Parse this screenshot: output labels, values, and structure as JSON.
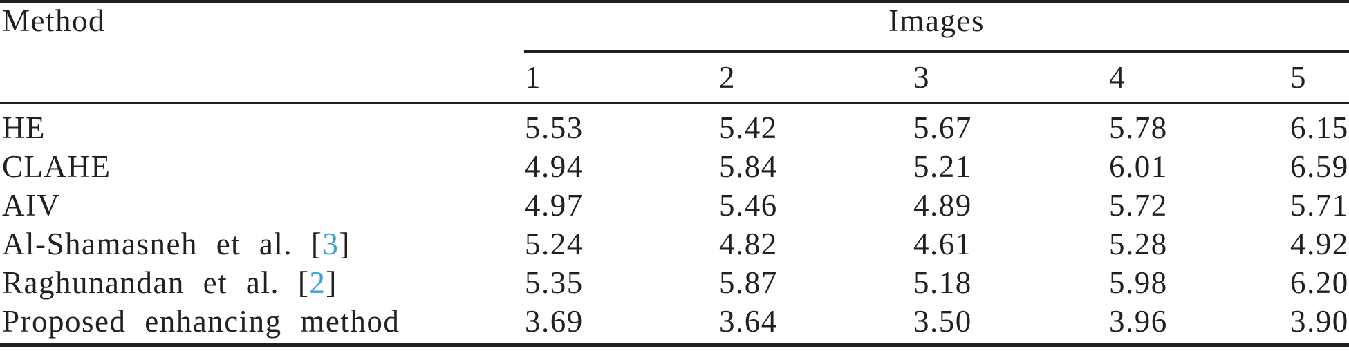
{
  "table": {
    "text_color": "#231f20",
    "citation_color": "#33a3dc",
    "header": {
      "method_label": "Method",
      "images_label": "Images"
    },
    "image_columns": [
      "1",
      "2",
      "3",
      "4",
      "5"
    ],
    "rows": [
      {
        "label": "HE",
        "values": [
          "5.53",
          "5.42",
          "5.67",
          "5.78",
          "6.15"
        ]
      },
      {
        "label": "CLAHE",
        "values": [
          "4.94",
          "5.84",
          "5.21",
          "6.01",
          "6.59"
        ]
      },
      {
        "label": "AIV",
        "values": [
          "4.97",
          "5.46",
          "4.89",
          "5.72",
          "5.71"
        ]
      },
      {
        "label": "Al-Shamasneh et al. ",
        "bracket_open": "[",
        "citation": "3",
        "bracket_close": "]",
        "values": [
          "5.24",
          "4.82",
          "4.61",
          "5.28",
          "4.92"
        ]
      },
      {
        "label": "Raghunandan et al. ",
        "bracket_open": "[",
        "citation": "2",
        "bracket_close": "]",
        "values": [
          "5.35",
          "5.87",
          "5.18",
          "5.98",
          "6.20"
        ]
      },
      {
        "label": "Proposed enhancing method",
        "values": [
          "3.69",
          "3.64",
          "3.50",
          "3.96",
          "3.90"
        ]
      }
    ]
  },
  "chart_data": {
    "type": "table",
    "row_group_label": "Method",
    "column_group_label": "Images",
    "categories": [
      "1",
      "2",
      "3",
      "4",
      "5"
    ],
    "series": [
      {
        "name": "HE",
        "values": [
          5.53,
          5.42,
          5.67,
          5.78,
          6.15
        ]
      },
      {
        "name": "CLAHE",
        "values": [
          4.94,
          5.84,
          5.21,
          6.01,
          6.59
        ]
      },
      {
        "name": "AIV",
        "values": [
          4.97,
          5.46,
          4.89,
          5.72,
          5.71
        ]
      },
      {
        "name": "Al-Shamasneh et al. [3]",
        "values": [
          5.24,
          4.82,
          4.61,
          5.28,
          4.92
        ]
      },
      {
        "name": "Raghunandan et al. [2]",
        "values": [
          5.35,
          5.87,
          5.18,
          5.98,
          6.2
        ]
      },
      {
        "name": "Proposed enhancing method",
        "values": [
          3.69,
          3.64,
          3.5,
          3.96,
          3.9
        ]
      }
    ]
  }
}
